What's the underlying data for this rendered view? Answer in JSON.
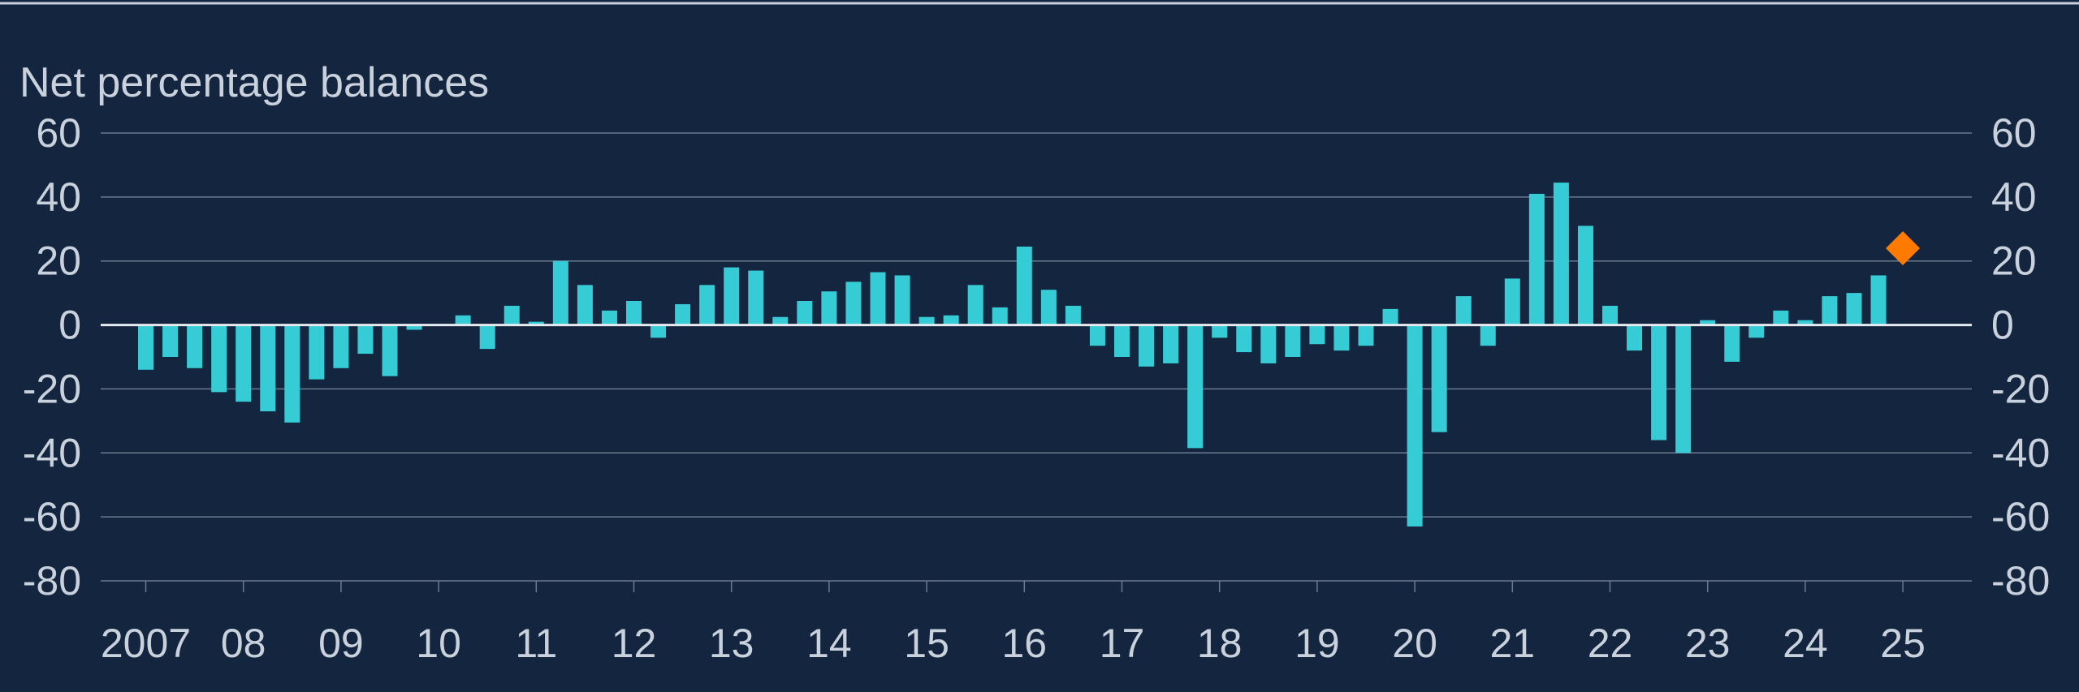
{
  "chart_data": {
    "type": "bar",
    "title": "",
    "ylabel": "Net percentage balances",
    "xlabel": "",
    "ylim": [
      -80,
      60
    ],
    "yticks": [
      60,
      40,
      20,
      0,
      -20,
      -40,
      -60,
      -80
    ],
    "ytick_labels": [
      "60",
      "40",
      "20",
      "0",
      "-20",
      "-40",
      "-60",
      "-80"
    ],
    "xtick_labels": [
      "2007",
      "08",
      "09",
      "10",
      "11",
      "12",
      "13",
      "14",
      "15",
      "16",
      "17",
      "18",
      "19",
      "20",
      "21",
      "22",
      "23",
      "24",
      "25"
    ],
    "grid": true,
    "legend": "none",
    "x": [
      "2007 Q1",
      "2007 Q2",
      "2007 Q3",
      "2007 Q4",
      "2008 Q1",
      "2008 Q2",
      "2008 Q3",
      "2008 Q4",
      "2009 Q1",
      "2009 Q2",
      "2009 Q3",
      "2009 Q4",
      "2010 Q1",
      "2010 Q2",
      "2010 Q3",
      "2010 Q4",
      "2011 Q1",
      "2011 Q2",
      "2011 Q3",
      "2011 Q4",
      "2012 Q1",
      "2012 Q2",
      "2012 Q3",
      "2012 Q4",
      "2013 Q1",
      "2013 Q2",
      "2013 Q3",
      "2013 Q4",
      "2014 Q1",
      "2014 Q2",
      "2014 Q3",
      "2014 Q4",
      "2015 Q1",
      "2015 Q2",
      "2015 Q3",
      "2015 Q4",
      "2016 Q1",
      "2016 Q2",
      "2016 Q3",
      "2016 Q4",
      "2017 Q1",
      "2017 Q2",
      "2017 Q3",
      "2017 Q4",
      "2018 Q1",
      "2018 Q2",
      "2018 Q3",
      "2018 Q4",
      "2019 Q1",
      "2019 Q2",
      "2019 Q3",
      "2019 Q4",
      "2020 Q1",
      "2020 Q2",
      "2020 Q3",
      "2020 Q4",
      "2021 Q1",
      "2021 Q2",
      "2021 Q3",
      "2021 Q4",
      "2022 Q1",
      "2022 Q2",
      "2022 Q3",
      "2022 Q4",
      "2023 Q1",
      "2023 Q2",
      "2023 Q3",
      "2023 Q4",
      "2024 Q1",
      "2024 Q2",
      "2024 Q3",
      "2024 Q4",
      "2025 Q1"
    ],
    "series": [
      {
        "type": "bar",
        "values": [
          -14,
          -10,
          -13.5,
          -21,
          -24,
          -27,
          -30.5,
          -17,
          -13.5,
          -9,
          -16,
          -1.5,
          0,
          3,
          -7.5,
          6,
          1,
          20,
          12.5,
          4.5,
          7.5,
          -4,
          6.5,
          12.5,
          18,
          17,
          2.5,
          7.5,
          10.5,
          13.5,
          16.5,
          15.5,
          2.5,
          3,
          12.5,
          5.5,
          24.5,
          11,
          6,
          -6.5,
          -10,
          -13,
          -12,
          -38.5,
          -4,
          -8.5,
          -12,
          -10,
          -6,
          -8,
          -6.5,
          5,
          -63,
          -33.5,
          9,
          -6.5,
          14.5,
          41,
          44.5,
          31,
          6,
          -8,
          -36,
          -40,
          1.5,
          -11.5,
          -4,
          4.5,
          1.5,
          9,
          10,
          15.5,
          null
        ]
      },
      {
        "type": "marker",
        "shape": "diamond",
        "values": [
          null,
          null,
          null,
          null,
          null,
          null,
          null,
          null,
          null,
          null,
          null,
          null,
          null,
          null,
          null,
          null,
          null,
          null,
          null,
          null,
          null,
          null,
          null,
          null,
          null,
          null,
          null,
          null,
          null,
          null,
          null,
          null,
          null,
          null,
          null,
          null,
          null,
          null,
          null,
          null,
          null,
          null,
          null,
          null,
          null,
          null,
          null,
          null,
          null,
          null,
          null,
          null,
          null,
          null,
          null,
          null,
          null,
          null,
          null,
          null,
          null,
          null,
          null,
          null,
          null,
          null,
          null,
          null,
          null,
          null,
          null,
          null,
          24
        ]
      }
    ],
    "colors": {
      "background": "#14253f",
      "bars": "#35ccd6",
      "marker": "#ff7a00",
      "grid": "#6b7a8f",
      "zero_line": "#e6eaef",
      "text": "#c9d2dc",
      "top_rule": "#c9d2dc"
    }
  }
}
